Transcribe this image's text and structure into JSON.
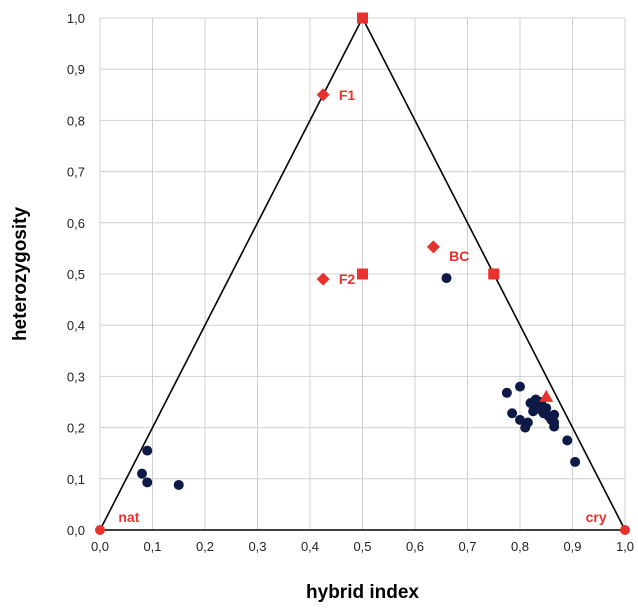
{
  "chart_data": {
    "type": "scatter",
    "title": "",
    "xlabel": "hybrid index",
    "ylabel": "heterozygosity",
    "xlim": [
      0,
      1
    ],
    "ylim": [
      0,
      1
    ],
    "x_ticks": [
      "0,0",
      "0,1",
      "0,2",
      "0,3",
      "0,4",
      "0,5",
      "0,6",
      "0,7",
      "0,8",
      "0,9",
      "1,0"
    ],
    "y_ticks": [
      "0,0",
      "0,1",
      "0,2",
      "0,3",
      "0,4",
      "0,5",
      "0,6",
      "0,7",
      "0,8",
      "0,9",
      "1,0"
    ],
    "x_tick_values": [
      0,
      0.1,
      0.2,
      0.3,
      0.4,
      0.5,
      0.6,
      0.7,
      0.8,
      0.9,
      1.0
    ],
    "y_tick_values": [
      0,
      0.1,
      0.2,
      0.3,
      0.4,
      0.5,
      0.6,
      0.7,
      0.8,
      0.9,
      1.0
    ],
    "grid": "vertical and horizontal major lines",
    "boundary_triangle": [
      [
        0,
        0
      ],
      [
        0.5,
        1.0
      ],
      [
        1.0,
        0
      ]
    ],
    "colors": {
      "samples": "#0d1a47",
      "reference": "#e8322e",
      "boundary": "#000000",
      "grid": "#d0d0d0"
    },
    "series": [
      {
        "marker": "circle",
        "color": "#0d1a47",
        "points": [
          [
            0.09,
            0.155
          ],
          [
            0.08,
            0.11
          ],
          [
            0.09,
            0.093
          ],
          [
            0.15,
            0.088
          ],
          [
            0.66,
            0.492
          ],
          [
            0.775,
            0.268
          ],
          [
            0.8,
            0.28
          ],
          [
            0.785,
            0.228
          ],
          [
            0.8,
            0.215
          ],
          [
            0.81,
            0.2
          ],
          [
            0.815,
            0.21
          ],
          [
            0.82,
            0.248
          ],
          [
            0.825,
            0.232
          ],
          [
            0.83,
            0.255
          ],
          [
            0.835,
            0.242
          ],
          [
            0.84,
            0.25
          ],
          [
            0.84,
            0.235
          ],
          [
            0.845,
            0.228
          ],
          [
            0.85,
            0.238
          ],
          [
            0.855,
            0.222
          ],
          [
            0.86,
            0.215
          ],
          [
            0.865,
            0.21
          ],
          [
            0.865,
            0.225
          ],
          [
            0.865,
            0.202
          ],
          [
            0.89,
            0.175
          ],
          [
            0.905,
            0.133
          ]
        ]
      },
      {
        "marker": "square",
        "color": "#e8322e",
        "points": [
          [
            0.5,
            1.0
          ],
          [
            0.5,
            0.5
          ],
          [
            0.75,
            0.5
          ]
        ]
      },
      {
        "marker": "diamond",
        "color": "#e8322e",
        "points": [
          [
            0.425,
            0.85
          ],
          [
            0.425,
            0.49
          ],
          [
            0.635,
            0.553
          ]
        ]
      },
      {
        "marker": "circle",
        "color": "#e8322e",
        "points": [
          [
            0.0,
            0.0
          ],
          [
            1.0,
            0.0
          ]
        ]
      },
      {
        "marker": "triangle",
        "color": "#e8322e",
        "points": [
          [
            0.85,
            0.26
          ]
        ]
      }
    ],
    "annotations": [
      {
        "text": "F1",
        "x": 0.455,
        "y": 0.85,
        "color": "#e8322e"
      },
      {
        "text": "F2",
        "x": 0.455,
        "y": 0.49,
        "color": "#e8322e"
      },
      {
        "text": "BC",
        "x": 0.665,
        "y": 0.535,
        "color": "#e8322e"
      },
      {
        "text": "nat",
        "x": 0.035,
        "y": 0.025,
        "color": "#e8322e"
      },
      {
        "text": "cry",
        "x": 0.925,
        "y": 0.025,
        "color": "#e8322e"
      }
    ]
  }
}
